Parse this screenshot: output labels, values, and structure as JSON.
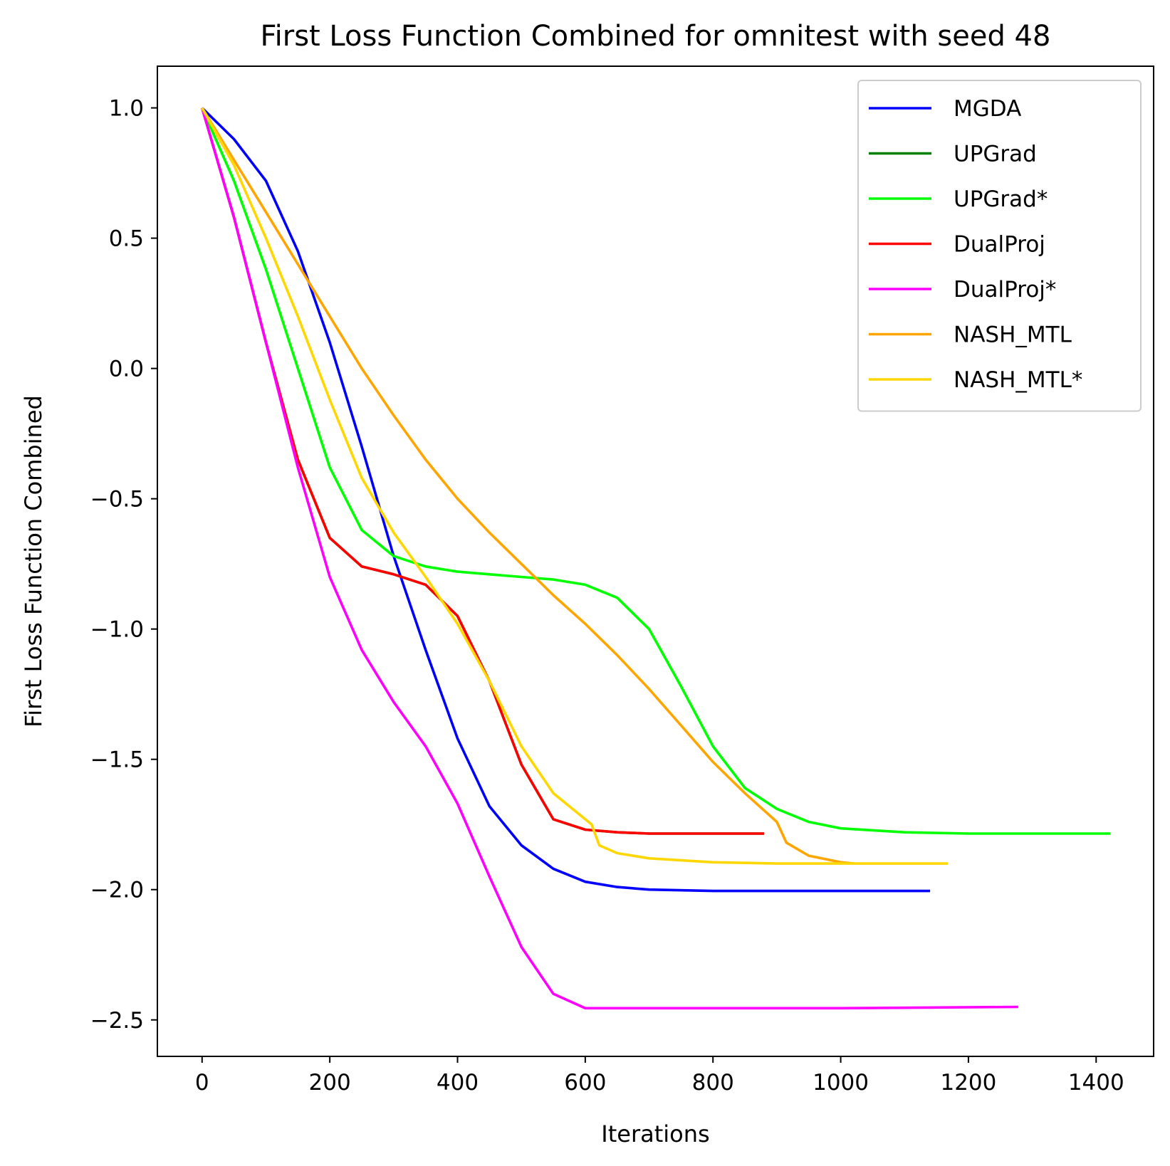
{
  "chart_data": {
    "type": "line",
    "title": "First Loss Function Combined for omnitest with seed 48",
    "xlabel": "Iterations",
    "ylabel": "First Loss Function Combined",
    "xlim": [
      -70,
      1490
    ],
    "ylim": [
      -2.64,
      1.16
    ],
    "xticks": [
      0,
      200,
      400,
      600,
      800,
      1000,
      1200,
      1400
    ],
    "xtick_labels": [
      "0",
      "200",
      "400",
      "600",
      "800",
      "1000",
      "1200",
      "1400"
    ],
    "yticks": [
      1.0,
      0.5,
      0.0,
      -0.5,
      -1.0,
      -1.5,
      -2.0,
      -2.5
    ],
    "ytick_labels": [
      "1.0",
      "0.5",
      "0.0",
      "−0.5",
      "−1.0",
      "−1.5",
      "−2.0",
      "−2.5"
    ],
    "grid": false,
    "legend_position": "top-right",
    "series": [
      {
        "name": "MGDA",
        "color": "#0000ff",
        "points": [
          [
            0,
            1.0
          ],
          [
            50,
            0.88
          ],
          [
            100,
            0.72
          ],
          [
            150,
            0.45
          ],
          [
            200,
            0.1
          ],
          [
            250,
            -0.3
          ],
          [
            300,
            -0.72
          ],
          [
            350,
            -1.08
          ],
          [
            400,
            -1.42
          ],
          [
            450,
            -1.68
          ],
          [
            500,
            -1.83
          ],
          [
            550,
            -1.92
          ],
          [
            600,
            -1.97
          ],
          [
            650,
            -1.99
          ],
          [
            700,
            -2.0
          ],
          [
            800,
            -2.005
          ],
          [
            900,
            -2.005
          ],
          [
            1000,
            -2.005
          ],
          [
            1140,
            -2.005
          ]
        ]
      },
      {
        "name": "UPGrad",
        "color": "#008000",
        "points": [
          [
            0,
            1.0
          ],
          [
            50,
            0.58
          ],
          [
            100,
            0.1
          ],
          [
            150,
            -0.35
          ],
          [
            200,
            -0.65
          ],
          [
            250,
            -0.76
          ],
          [
            300,
            -0.79
          ],
          [
            350,
            -0.83
          ],
          [
            400,
            -0.95
          ],
          [
            450,
            -1.2
          ],
          [
            500,
            -1.52
          ],
          [
            550,
            -1.73
          ],
          [
            600,
            -1.77
          ],
          [
            650,
            -1.78
          ],
          [
            700,
            -1.785
          ],
          [
            800,
            -1.785
          ],
          [
            880,
            -1.785
          ]
        ]
      },
      {
        "name": "UPGrad*",
        "color": "#00ff00",
        "points": [
          [
            0,
            1.0
          ],
          [
            50,
            0.72
          ],
          [
            100,
            0.38
          ],
          [
            150,
            0.0
          ],
          [
            200,
            -0.38
          ],
          [
            250,
            -0.62
          ],
          [
            300,
            -0.72
          ],
          [
            350,
            -0.76
          ],
          [
            400,
            -0.78
          ],
          [
            450,
            -0.79
          ],
          [
            500,
            -0.8
          ],
          [
            550,
            -0.81
          ],
          [
            600,
            -0.83
          ],
          [
            650,
            -0.88
          ],
          [
            700,
            -1.0
          ],
          [
            750,
            -1.22
          ],
          [
            800,
            -1.45
          ],
          [
            850,
            -1.61
          ],
          [
            900,
            -1.69
          ],
          [
            950,
            -1.74
          ],
          [
            1000,
            -1.765
          ],
          [
            1100,
            -1.78
          ],
          [
            1200,
            -1.785
          ],
          [
            1300,
            -1.785
          ],
          [
            1422,
            -1.785
          ]
        ]
      },
      {
        "name": "DualProj",
        "color": "#ff0000",
        "points": [
          [
            0,
            1.0
          ],
          [
            50,
            0.58
          ],
          [
            100,
            0.1
          ],
          [
            150,
            -0.35
          ],
          [
            200,
            -0.65
          ],
          [
            250,
            -0.76
          ],
          [
            300,
            -0.79
          ],
          [
            350,
            -0.83
          ],
          [
            400,
            -0.95
          ],
          [
            450,
            -1.2
          ],
          [
            500,
            -1.52
          ],
          [
            550,
            -1.73
          ],
          [
            600,
            -1.77
          ],
          [
            650,
            -1.78
          ],
          [
            700,
            -1.785
          ],
          [
            800,
            -1.785
          ],
          [
            880,
            -1.785
          ]
        ]
      },
      {
        "name": "DualProj*",
        "color": "#ff00ff",
        "points": [
          [
            0,
            1.0
          ],
          [
            50,
            0.58
          ],
          [
            100,
            0.1
          ],
          [
            150,
            -0.38
          ],
          [
            200,
            -0.8
          ],
          [
            250,
            -1.08
          ],
          [
            300,
            -1.28
          ],
          [
            350,
            -1.45
          ],
          [
            400,
            -1.67
          ],
          [
            450,
            -1.95
          ],
          [
            500,
            -2.22
          ],
          [
            550,
            -2.4
          ],
          [
            600,
            -2.455
          ],
          [
            700,
            -2.455
          ],
          [
            800,
            -2.455
          ],
          [
            1000,
            -2.455
          ],
          [
            1278,
            -2.45
          ]
        ]
      },
      {
        "name": "NASH_MTL",
        "color": "#ffa500",
        "points": [
          [
            0,
            1.0
          ],
          [
            50,
            0.8
          ],
          [
            100,
            0.6
          ],
          [
            150,
            0.4
          ],
          [
            200,
            0.2
          ],
          [
            250,
            0.0
          ],
          [
            300,
            -0.18
          ],
          [
            350,
            -0.35
          ],
          [
            400,
            -0.5
          ],
          [
            450,
            -0.63
          ],
          [
            500,
            -0.75
          ],
          [
            550,
            -0.87
          ],
          [
            600,
            -0.98
          ],
          [
            650,
            -1.1
          ],
          [
            700,
            -1.23
          ],
          [
            750,
            -1.37
          ],
          [
            800,
            -1.51
          ],
          [
            850,
            -1.63
          ],
          [
            900,
            -1.74
          ],
          [
            915,
            -1.82
          ],
          [
            950,
            -1.87
          ],
          [
            1000,
            -1.895
          ],
          [
            1020,
            -1.9
          ]
        ]
      },
      {
        "name": "NASH_MTL*",
        "color": "#ffd700",
        "points": [
          [
            0,
            1.0
          ],
          [
            50,
            0.78
          ],
          [
            100,
            0.5
          ],
          [
            150,
            0.2
          ],
          [
            200,
            -0.12
          ],
          [
            250,
            -0.42
          ],
          [
            300,
            -0.63
          ],
          [
            350,
            -0.8
          ],
          [
            400,
            -0.98
          ],
          [
            450,
            -1.2
          ],
          [
            500,
            -1.45
          ],
          [
            550,
            -1.63
          ],
          [
            600,
            -1.73
          ],
          [
            610,
            -1.75
          ],
          [
            622,
            -1.83
          ],
          [
            650,
            -1.86
          ],
          [
            700,
            -1.88
          ],
          [
            800,
            -1.895
          ],
          [
            900,
            -1.9
          ],
          [
            1000,
            -1.9
          ],
          [
            1168,
            -1.9
          ]
        ]
      }
    ]
  }
}
